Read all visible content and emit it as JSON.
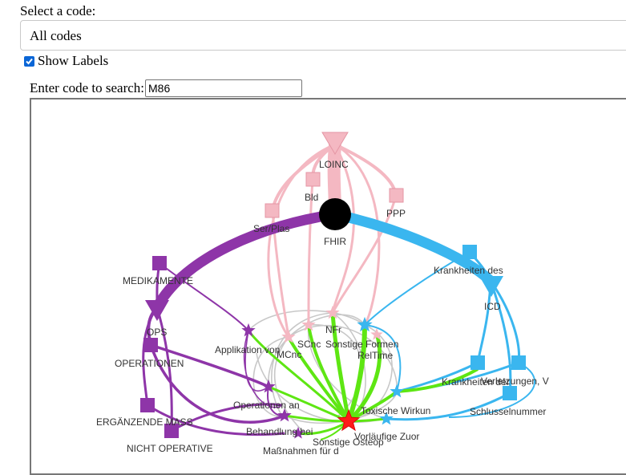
{
  "controls": {
    "select_label": "Select a code:",
    "select_value": "All codes",
    "show_labels": "Show Labels",
    "search_label": "Enter code to search:",
    "search_value": "M86"
  },
  "colors": {
    "fhir": "#000000",
    "loinc": "#f4b8c2",
    "icd": "#3ab6ef",
    "ops": "#8e35a8",
    "highlight_edge": "#5ee613",
    "grey_edge": "#c8c8c8",
    "search_hit": "#ff1a1a"
  },
  "nodes": {
    "fhir": "FHIR",
    "loinc": "LOINC",
    "bld": "Bld",
    "ppp": "PPP",
    "serplas": "Ser/Plas",
    "krank_des": "Krankheiten des",
    "icd": "ICD",
    "krank_der": "Krankheiten der",
    "verletz": "Verletzungen, V",
    "schluessel": "Schlusselnummer",
    "medikamente": "MEDIKAMENTE",
    "ops": "OPS",
    "operationen": "OPERATIONEN",
    "erg": "ERGÄNZENDE MASS",
    "nicht": "NICHT OPERATIVE",
    "applikation": "Applikation von",
    "mcnc": "MCnc",
    "scnc": "SCnc",
    "nfr": "NFr",
    "sonstige_formen": "Sonstige Formen",
    "reltime": "RelTime",
    "operationen_an": "Operationen an",
    "toxische": "Toxische Wirkun",
    "behandlung": "Behandlung bei",
    "vorlaeufige": "Vorläufige Zuor",
    "sonstige_osteop": "Sonstige Osteop",
    "massnahmen": "Maßnahmen für d"
  }
}
